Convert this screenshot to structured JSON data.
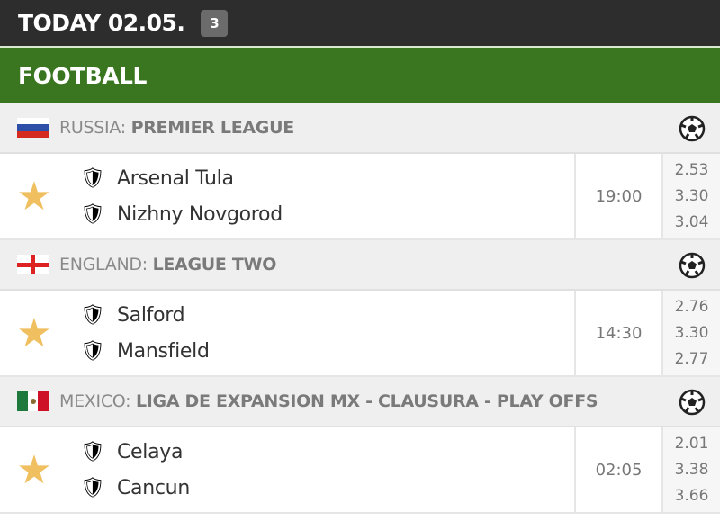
{
  "header": {
    "title": "TODAY 02.05.",
    "count": "3"
  },
  "sport": "FOOTBALL",
  "colors": {
    "header_bg": "#2d2d2d",
    "sport_bg": "#3a7520",
    "star": "#f0c060"
  },
  "leagues": [
    {
      "country": "RUSSIA:",
      "name": "PREMIER LEAGUE",
      "flag": "russia",
      "match": {
        "home": "Arsenal Tula",
        "away": "Nizhny Novgorod",
        "time": "19:00",
        "odds": [
          "2.53",
          "3.30",
          "3.04"
        ]
      }
    },
    {
      "country": "ENGLAND:",
      "name": "LEAGUE TWO",
      "flag": "england",
      "match": {
        "home": "Salford",
        "away": "Mansfield",
        "time": "14:30",
        "odds": [
          "2.76",
          "3.30",
          "2.77"
        ]
      }
    },
    {
      "country": "MEXICO:",
      "name": "LIGA DE EXPANSION MX - CLAUSURA - PLAY OFFS",
      "flag": "mexico",
      "match": {
        "home": "Celaya",
        "away": "Cancun",
        "time": "02:05",
        "odds": [
          "2.01",
          "3.38",
          "3.66"
        ]
      }
    }
  ]
}
